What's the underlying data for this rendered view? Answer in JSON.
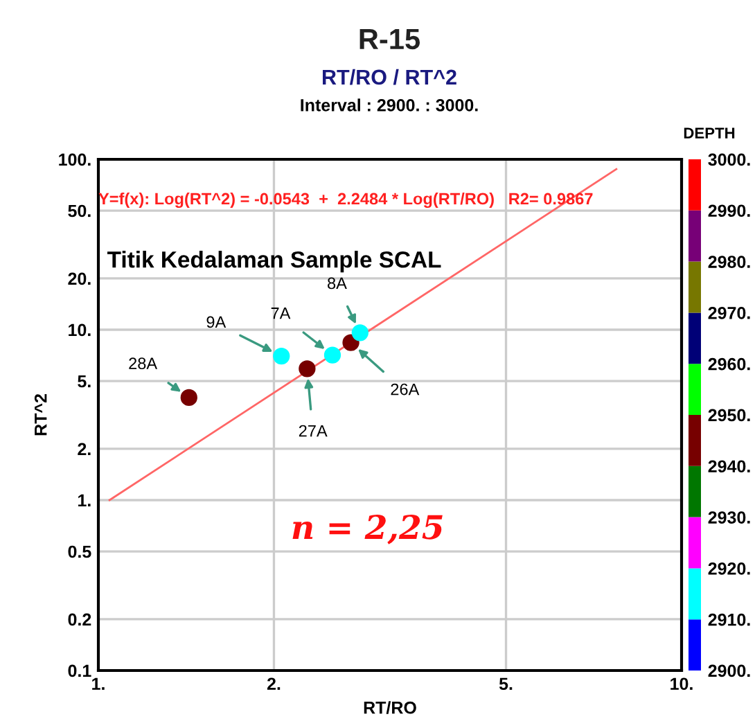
{
  "chart_data": {
    "type": "scatter",
    "title": "R-15",
    "subtitle": "RT/RO / RT^2",
    "xlabel": "RT/RO",
    "ylabel": "RT^2",
    "clabel": "DEPTH",
    "annotations": [
      "Interval : 2900. : 3000.",
      "Y=f(x): Log(RT^2) = -0.0543  +  2.2484 * Log(RT/RO)   R2= 0.9867",
      "Titik Kedalaman Sample SCAL",
      "n = 2,25",
      {
        "text": "28A",
        "x": 1.43,
        "y": 4.0
      },
      {
        "text": "9A",
        "x": 2.06,
        "y": 7.0
      },
      {
        "text": "27A",
        "x": 2.28,
        "y": 5.9
      },
      {
        "text": "7A",
        "x": 2.52,
        "y": 7.1
      },
      {
        "text": "26A",
        "x": 2.71,
        "y": 8.4
      },
      {
        "text": "8A",
        "x": 2.81,
        "y": 9.6
      }
    ],
    "log": "xy",
    "grid": true,
    "xlim": [
      1,
      10
    ],
    "xticks": [
      {
        "value": 1,
        "label": "1."
      },
      {
        "value": 2,
        "label": "2."
      },
      {
        "value": 5,
        "label": "5."
      },
      {
        "value": 10,
        "label": "10."
      }
    ],
    "ylim": [
      0.1,
      100
    ],
    "yticks": [
      0.1,
      0.2,
      0.5,
      {
        "value": 1,
        "label": "1."
      },
      {
        "value": 2,
        "label": "2."
      },
      {
        "value": 5,
        "label": "5."
      },
      {
        "value": 10,
        "label": "10."
      },
      {
        "value": 20,
        "label": "20."
      },
      {
        "value": 50,
        "label": "50."
      },
      {
        "value": 100,
        "label": "100."
      }
    ],
    "clim": [
      2900,
      3000
    ],
    "cticks": [
      {
        "value": 2900,
        "label": "2900."
      },
      {
        "value": 2910,
        "label": "2910."
      },
      {
        "value": 2920,
        "label": "2920."
      },
      {
        "value": 2930,
        "label": "2930."
      },
      {
        "value": 2940,
        "label": "2940."
      },
      {
        "value": 2950,
        "label": "2950."
      },
      {
        "value": 2960,
        "label": "2960."
      },
      {
        "value": 2970,
        "label": "2970."
      },
      {
        "value": 2980,
        "label": "2980."
      },
      {
        "value": 2990,
        "label": "2990."
      },
      {
        "value": 3000,
        "label": "3000."
      }
    ],
    "series": [
      {
        "marker": "circle",
        "x": [
          1.43,
          2.06,
          2.28,
          2.52,
          2.71,
          2.81
        ],
        "values": [
          4.0,
          7.0,
          5.9,
          7.1,
          8.4,
          9.6
        ],
        "cvalues": [
          2945,
          2915,
          2945,
          2915,
          2945,
          2915
        ],
        "colors": [
          "#770000",
          "#00ffff",
          "#770000",
          "#00ffff",
          "#770000",
          "#00ffff"
        ]
      },
      {
        "type": "line",
        "marker": "none",
        "color": "#ff6666",
        "x": [
          1.045,
          7.73
        ],
        "values": [
          1.0,
          87.6
        ]
      }
    ]
  }
}
